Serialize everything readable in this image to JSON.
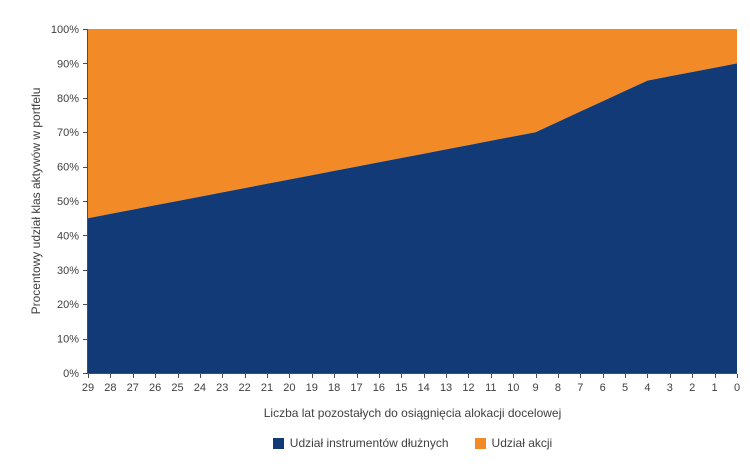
{
  "chart_data": {
    "type": "area",
    "stacked": true,
    "title": "",
    "xlabel": "Liczba lat pozostałych do osiągnięcia alokacji docelowej",
    "ylabel": "Procentowy udział klas aktywów w portfelu",
    "ylim": [
      0,
      100
    ],
    "y_tick_labels": [
      "0%",
      "10%",
      "20%",
      "30%",
      "40%",
      "50%",
      "60%",
      "70%",
      "80%",
      "90%",
      "100%"
    ],
    "y_tick_values": [
      0,
      10,
      20,
      30,
      40,
      50,
      60,
      70,
      80,
      90,
      100
    ],
    "grid": false,
    "legend_position": "bottom",
    "x": [
      29,
      28,
      27,
      26,
      25,
      24,
      23,
      22,
      21,
      20,
      19,
      18,
      17,
      16,
      15,
      14,
      13,
      12,
      11,
      10,
      9,
      8,
      7,
      6,
      5,
      4,
      3,
      2,
      1,
      0
    ],
    "series": [
      {
        "name": "Udział instrumentów dłużnych",
        "color": "#113a77",
        "values": [
          45,
          46.25,
          47.5,
          48.75,
          50,
          51.25,
          52.5,
          53.75,
          55,
          56.25,
          57.5,
          58.75,
          60,
          61.25,
          62.5,
          63.75,
          65,
          66.25,
          67.5,
          68.75,
          70,
          73,
          76,
          79,
          82,
          85,
          86.25,
          87.5,
          88.75,
          90
        ]
      },
      {
        "name": "Udział akcji",
        "color": "#f28a28",
        "values": [
          55,
          53.75,
          52.5,
          51.25,
          50,
          48.75,
          47.5,
          46.25,
          45,
          43.75,
          42.5,
          41.25,
          40,
          38.75,
          37.5,
          36.25,
          35,
          33.75,
          32.5,
          31.25,
          30,
          27,
          24,
          21,
          18,
          15,
          13.75,
          12.5,
          11.25,
          10
        ]
      }
    ],
    "axis_color": "#4d4d4d",
    "text_color": "#404040"
  }
}
